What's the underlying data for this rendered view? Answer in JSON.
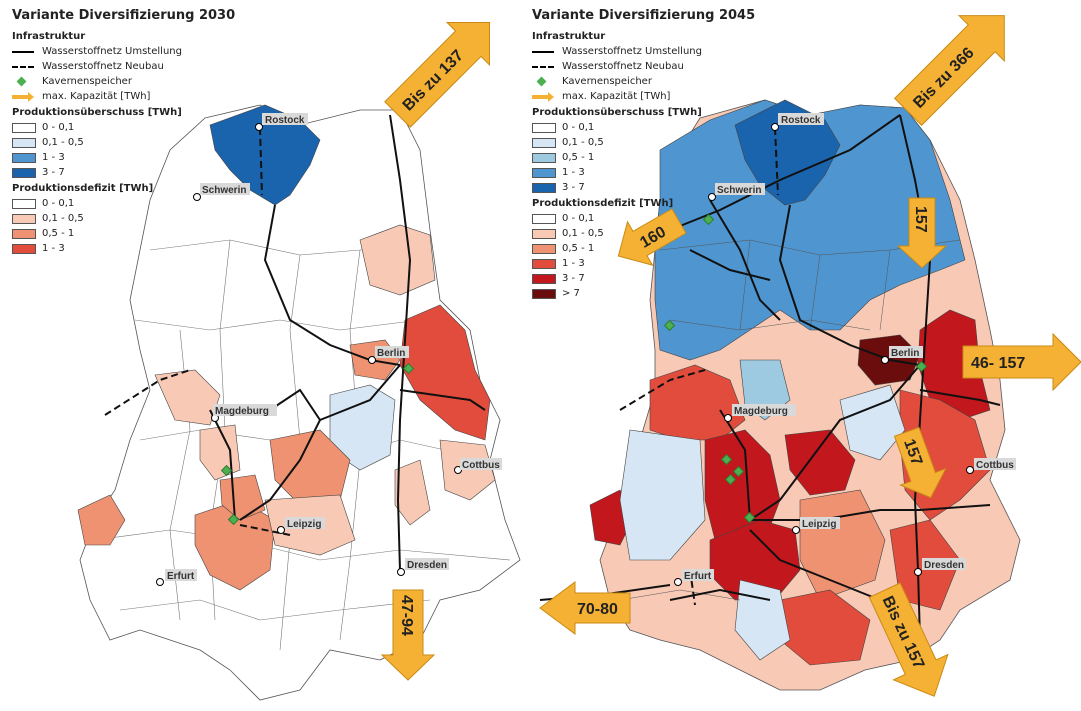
{
  "left": {
    "title": "Variante Diversifizierung 2030",
    "legend": {
      "infra_title": "Infrastruktur",
      "umstellung": "Wasserstoffnetz Umstellung",
      "neubau": "Wasserstoffnetz Neubau",
      "speicher": "Kavernenspeicher",
      "kapazitaet": "max. Kapazität [TWh]",
      "surplus_title": "Produktionsüberschuss [TWh]",
      "surplus": [
        "0 - 0,1",
        "0,1 - 0,5",
        "1 - 3",
        "3 - 7"
      ],
      "deficit_title": "Produktionsdefizit [TWh]",
      "deficit": [
        "0 - 0,1",
        "0,1 - 0,5",
        "0,5 - 1",
        "1 - 3"
      ]
    },
    "cities": {
      "rostock": "Rostock",
      "schwerin": "Schwerin",
      "berlin": "Berlin",
      "magdeburg": "Magdeburg",
      "cottbus": "Cottbus",
      "leipzig": "Leipzig",
      "dresden": "Dresden",
      "erfurt": "Erfurt"
    },
    "arrows": {
      "ne": "Bis zu 137",
      "s": "47-94"
    }
  },
  "right": {
    "title": "Variante Diversifizierung 2045",
    "legend": {
      "infra_title": "Infrastruktur",
      "umstellung": "Wasserstoffnetz Umstellung",
      "neubau": "Wasserstoffnetz Neubau",
      "speicher": "Kavernenspeicher",
      "kapazitaet": "max. Kapazität [TWh]",
      "surplus_title": "Produktionsüberschuss [TWh]",
      "surplus": [
        "0 - 0,1",
        "0,1 - 0,5",
        "0,5 - 1",
        "1 - 3",
        "3 - 7"
      ],
      "deficit_title": "Produktionsdefizit [TWh]",
      "deficit": [
        "0 - 0,1",
        "0,1 - 0,5",
        "0,5 - 1",
        "1 - 3",
        "3 - 7",
        "> 7"
      ]
    },
    "cities": {
      "rostock": "Rostock",
      "schwerin": "Schwerin",
      "berlin": "Berlin",
      "magdeburg": "Magdeburg",
      "cottbus": "Cottbus",
      "leipzig": "Leipzig",
      "dresden": "Dresden",
      "erfurt": "Erfurt"
    },
    "arrows": {
      "ne": "Bis zu 366",
      "w1": "160",
      "n157": "157",
      "e": "46- 157",
      "m157": "157",
      "sw": "70-80",
      "s": "Bis zu 157"
    }
  },
  "colors": {
    "s0": "#ffffff",
    "s1": "#d6e6f4",
    "s2": "#9ecae1",
    "s3": "#4f95cf",
    "s4": "#1a63ad",
    "d0": "#ffffff",
    "d1": "#f8c9b5",
    "d2": "#ef9272",
    "d3": "#e24c3c",
    "d4": "#c1171d",
    "d5": "#6b0d0d",
    "arrow": "#f5b133",
    "storage": "#4caf50"
  }
}
